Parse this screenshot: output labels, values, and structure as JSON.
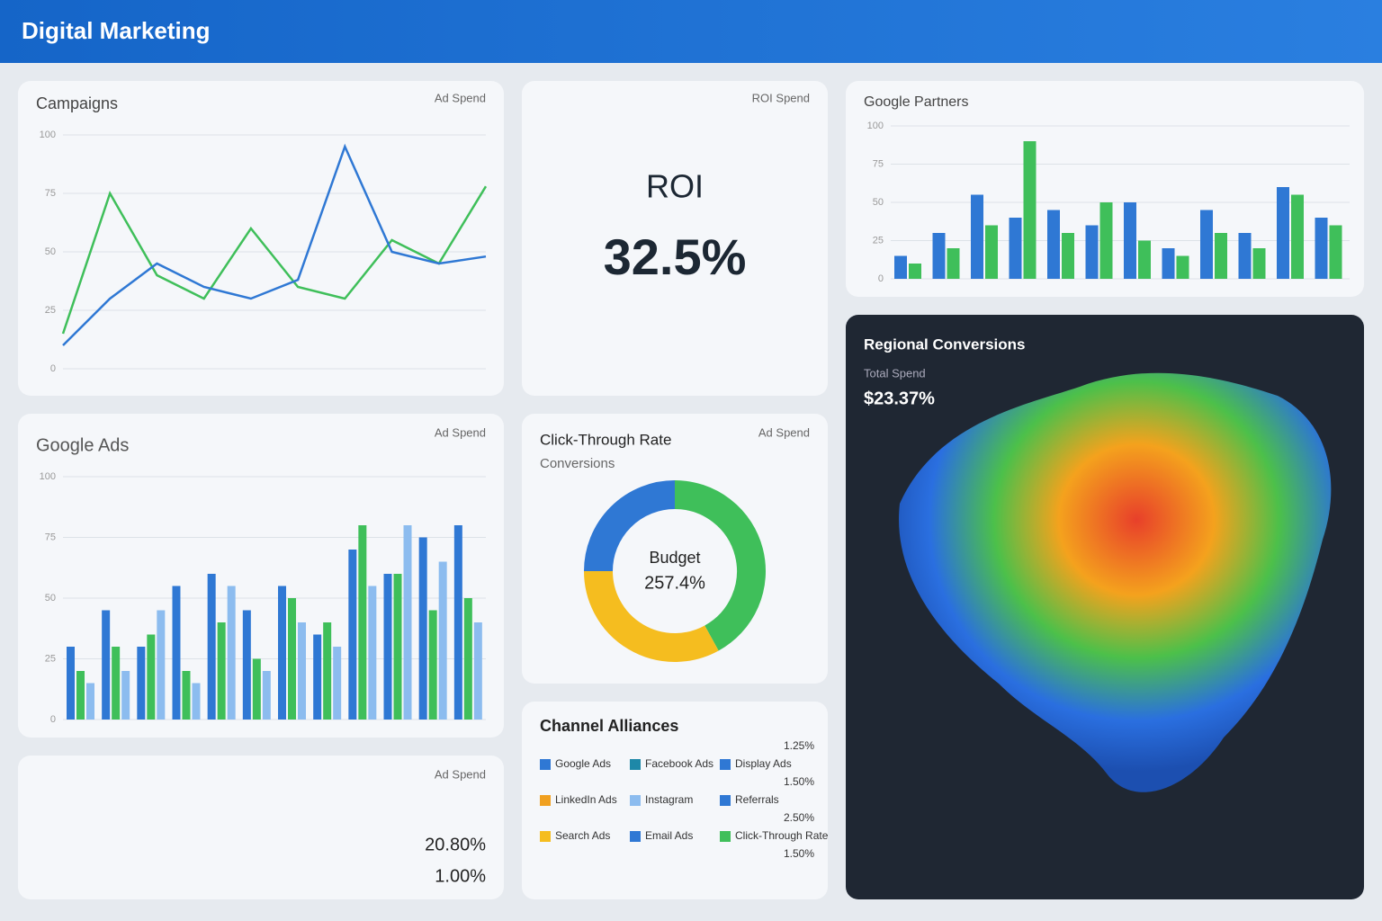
{
  "header": {
    "title": "Digital Marketing"
  },
  "campaigns": {
    "title": "Campaigns",
    "corner": "Ad Spend",
    "ylim": [
      0,
      100
    ],
    "yticks": [
      0,
      25,
      50,
      75,
      100
    ],
    "series": [
      {
        "color": "#3fbf5a",
        "values": [
          15,
          75,
          40,
          30,
          60,
          35,
          30,
          55,
          45,
          78
        ]
      },
      {
        "color": "#2f78d4",
        "values": [
          10,
          30,
          45,
          35,
          30,
          38,
          95,
          50,
          45,
          48
        ]
      }
    ]
  },
  "roi": {
    "corner": "ROI Spend",
    "label": "ROI",
    "value": "32.5%"
  },
  "partners": {
    "title": "Google Partners",
    "ylim": [
      0,
      100
    ],
    "yticks": [
      0,
      25,
      50,
      75,
      100
    ],
    "series": [
      {
        "color": "#2f78d4",
        "values": [
          15,
          30,
          55,
          40,
          45,
          35,
          50,
          20,
          45,
          30,
          60,
          40
        ]
      },
      {
        "color": "#3fbf5a",
        "values": [
          10,
          20,
          35,
          90,
          30,
          50,
          25,
          15,
          30,
          20,
          55,
          35
        ]
      }
    ]
  },
  "donut": {
    "title": "Click-Through Rate",
    "subtitle": "Conversions",
    "corner": "Ad Spend",
    "center_label": "Budget",
    "center_value": "257.4%",
    "segments": [
      {
        "color": "#3fbf5a",
        "value": 42
      },
      {
        "color": "#f5bd1f",
        "value": 33
      },
      {
        "color": "#2f78d4",
        "value": 25
      }
    ]
  },
  "map": {
    "title": "Regional Conversions",
    "stat_label": "Total Spend",
    "stat_value": "$23.37%"
  },
  "google_ads": {
    "title": "Google Ads",
    "corner": "Ad Spend",
    "ylim": [
      0,
      100
    ],
    "yticks": [
      0,
      25,
      50,
      75,
      100
    ],
    "series": [
      {
        "color": "#2f78d4",
        "values": [
          30,
          45,
          30,
          55,
          60,
          45,
          55,
          35,
          70,
          60,
          75,
          80
        ]
      },
      {
        "color": "#3fbf5a",
        "values": [
          20,
          30,
          35,
          20,
          40,
          25,
          50,
          40,
          80,
          60,
          45,
          50
        ]
      },
      {
        "color": "#8cbcef",
        "values": [
          15,
          20,
          45,
          15,
          55,
          20,
          40,
          30,
          55,
          80,
          65,
          40
        ]
      }
    ]
  },
  "channels": {
    "title": "Channel Alliances",
    "items": [
      {
        "color": "#2f78d4",
        "label": "Google Ads"
      },
      {
        "color": "#f0a020",
        "label": "LinkedIn Ads"
      },
      {
        "color": "#f5bd1f",
        "label": "Search Ads"
      },
      {
        "color": "#1e88a8",
        "label": "Facebook Ads"
      },
      {
        "color": "#8cbcef",
        "label": "Instagram"
      },
      {
        "color": "#2f78d4",
        "label": "Email Ads"
      },
      {
        "color": "#2f78d4",
        "label": "Display Ads"
      },
      {
        "color": "#2f78d4",
        "label": "Referrals"
      },
      {
        "color": "#3fbf5a",
        "label": "Click-Through Rate"
      }
    ],
    "rates": [
      "1.25%",
      "1.50%",
      "2.50%",
      "1.50%"
    ]
  },
  "spend": {
    "corner": "Ad Spend",
    "value": "20.80%",
    "value2": "1.00%"
  }
}
